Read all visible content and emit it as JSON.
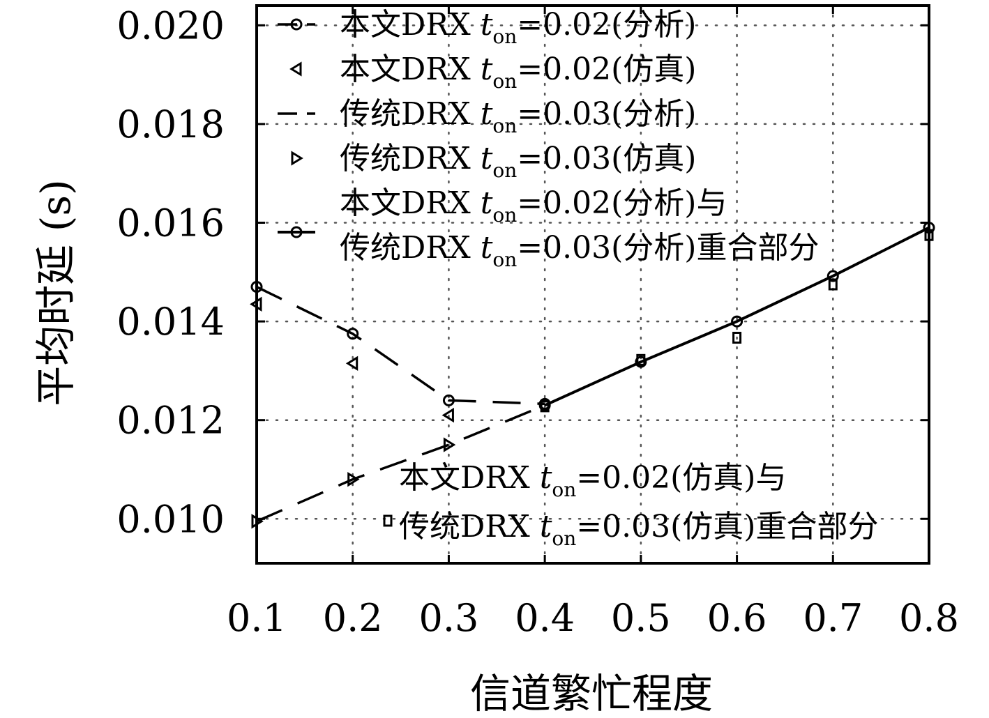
{
  "chart_data": {
    "type": "line",
    "xlabel": "信道繁忙程度",
    "ylabel": "平均时延 (s)",
    "xlim": [
      0.1,
      0.8
    ],
    "ylim": [
      0.0091,
      0.0204
    ],
    "x_ticks": [
      "0.1",
      "0.2",
      "0.3",
      "0.4",
      "0.5",
      "0.6",
      "0.7",
      "0.8"
    ],
    "y_ticks": [
      "0.010",
      "0.012",
      "0.014",
      "0.016",
      "0.018",
      "0.020"
    ],
    "grid": true,
    "legend_position": "top",
    "x": [
      0.1,
      0.2,
      0.3,
      0.4,
      0.5,
      0.6,
      0.7,
      0.8
    ],
    "series": [
      {
        "name": "本文DRX ton=0.02(分析)",
        "label_main": "本文DRX ",
        "label_sub": "=0.02(分析)",
        "style": "dashed",
        "marker": "circle",
        "points": [
          [
            0.1,
            0.0147
          ],
          [
            0.2,
            0.01375
          ],
          [
            0.3,
            0.0124
          ],
          [
            0.4,
            0.01233
          ]
        ]
      },
      {
        "name": "本文DRX ton=0.02(仿真)",
        "label_main": "本文DRX ",
        "label_sub": "=0.02(仿真)",
        "style": "none",
        "marker": "triangle-left",
        "points": [
          [
            0.1,
            0.01435
          ],
          [
            0.2,
            0.01315
          ],
          [
            0.3,
            0.0121
          ]
        ]
      },
      {
        "name": "传统DRX ton=0.03(分析)",
        "label_main": "传统DRX ",
        "label_sub": "=0.03(分析)",
        "style": "dashed",
        "marker": "none",
        "points": [
          [
            0.1,
            0.00995
          ],
          [
            0.2,
            0.0108
          ],
          [
            0.3,
            0.0115
          ],
          [
            0.4,
            0.0123
          ]
        ]
      },
      {
        "name": "传统DRX ton=0.03(仿真)",
        "label_main": "传统DRX ",
        "label_sub": "=0.03(仿真)",
        "style": "none",
        "marker": "triangle-right",
        "points": [
          [
            0.1,
            0.00995
          ],
          [
            0.2,
            0.0108
          ],
          [
            0.3,
            0.0115
          ]
        ]
      },
      {
        "name": "本文DRX ton=0.02(分析)与 传统DRX ton=0.03(分析)重合部分",
        "style": "solid",
        "marker": "circle",
        "points": [
          [
            0.4,
            0.0123
          ],
          [
            0.5,
            0.01318
          ],
          [
            0.6,
            0.014
          ],
          [
            0.7,
            0.01492
          ],
          [
            0.8,
            0.0159
          ]
        ]
      },
      {
        "name": "本文DRX ton=0.02(仿真)与 传统DRX ton=0.03(仿真)重合部分",
        "style": "none",
        "marker": "square",
        "points": [
          [
            0.4,
            0.01228
          ],
          [
            0.5,
            0.01322
          ],
          [
            0.6,
            0.01367
          ],
          [
            0.7,
            0.01475
          ],
          [
            0.8,
            0.01575
          ]
        ]
      }
    ],
    "overlap_analysis_label": {
      "line1_main": "本文DRX ",
      "line1_sub": "=0.02(分析)与",
      "line2_main": "传统DRX ",
      "line2_sub": "=0.03(分析)重合部分"
    },
    "overlap_sim_label": {
      "line1_main": "本文DRX ",
      "line1_sub": "=0.02(仿真)与",
      "line2_main": "传统DRX ",
      "line2_sub": "=0.03(仿真)重合部分"
    },
    "t_symbol": "t",
    "t_subscript": "on"
  }
}
